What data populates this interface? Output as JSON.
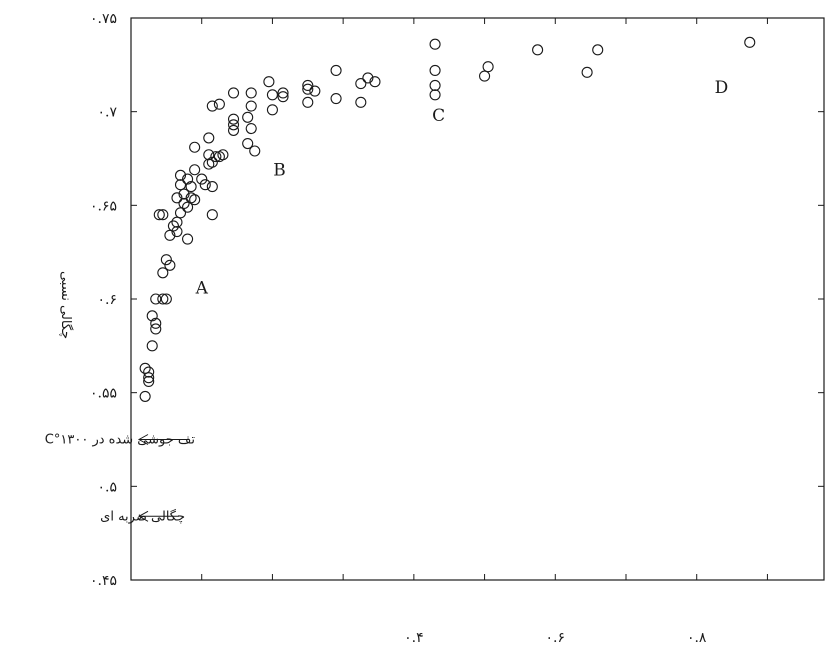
{
  "chart_data": {
    "type": "scatter",
    "title": "",
    "xlabel": "",
    "ylabel": "چگالی نسبی",
    "xlim": [
      0,
      0.98
    ],
    "ylim": [
      0.45,
      0.75
    ],
    "y_ticks": [
      {
        "value": 0.75,
        "label": "۰.۷۵"
      },
      {
        "value": 0.7,
        "label": "۰.۷"
      },
      {
        "value": 0.65,
        "label": "۰.۶۵"
      },
      {
        "value": 0.6,
        "label": "۰.۶"
      },
      {
        "value": 0.55,
        "label": "۰.۵۵"
      },
      {
        "value": 0.5,
        "label": "۰.۵"
      },
      {
        "value": 0.45,
        "label": "۰.۴۵"
      }
    ],
    "x_ticks": [
      {
        "value": 0.4,
        "label": "۰.۴"
      },
      {
        "value": 0.6,
        "label": "۰.۶"
      },
      {
        "value": 0.8,
        "label": "۰.۸"
      }
    ],
    "x_minor_ticks": [
      0.1,
      0.2,
      0.3,
      0.4,
      0.5,
      0.6,
      0.7,
      0.8,
      0.9
    ],
    "grid": false,
    "legend": "none",
    "series": [
      {
        "points": [
          [
            0.02,
            0.548
          ],
          [
            0.02,
            0.563
          ],
          [
            0.025,
            0.558
          ],
          [
            0.025,
            0.561
          ],
          [
            0.025,
            0.556
          ],
          [
            0.03,
            0.575
          ],
          [
            0.035,
            0.587
          ],
          [
            0.03,
            0.591
          ],
          [
            0.035,
            0.584
          ],
          [
            0.035,
            0.6
          ],
          [
            0.045,
            0.6
          ],
          [
            0.05,
            0.6
          ],
          [
            0.045,
            0.614
          ],
          [
            0.055,
            0.618
          ],
          [
            0.05,
            0.621
          ],
          [
            0.04,
            0.645
          ],
          [
            0.045,
            0.645
          ],
          [
            0.06,
            0.639
          ],
          [
            0.065,
            0.641
          ],
          [
            0.065,
            0.636
          ],
          [
            0.055,
            0.634
          ],
          [
            0.08,
            0.632
          ],
          [
            0.07,
            0.646
          ],
          [
            0.075,
            0.651
          ],
          [
            0.08,
            0.649
          ],
          [
            0.065,
            0.654
          ],
          [
            0.075,
            0.656
          ],
          [
            0.07,
            0.661
          ],
          [
            0.085,
            0.654
          ],
          [
            0.09,
            0.653
          ],
          [
            0.07,
            0.666
          ],
          [
            0.08,
            0.664
          ],
          [
            0.085,
            0.66
          ],
          [
            0.09,
            0.669
          ],
          [
            0.09,
            0.681
          ],
          [
            0.1,
            0.664
          ],
          [
            0.105,
            0.661
          ],
          [
            0.11,
            0.677
          ],
          [
            0.11,
            0.686
          ],
          [
            0.115,
            0.66
          ],
          [
            0.11,
            0.672
          ],
          [
            0.115,
            0.673
          ],
          [
            0.12,
            0.676
          ],
          [
            0.125,
            0.676
          ],
          [
            0.13,
            0.677
          ],
          [
            0.115,
            0.645
          ],
          [
            0.115,
            0.703
          ],
          [
            0.125,
            0.704
          ],
          [
            0.145,
            0.69
          ],
          [
            0.145,
            0.693
          ],
          [
            0.145,
            0.696
          ],
          [
            0.145,
            0.71
          ],
          [
            0.165,
            0.683
          ],
          [
            0.165,
            0.697
          ],
          [
            0.17,
            0.691
          ],
          [
            0.175,
            0.679
          ],
          [
            0.17,
            0.71
          ],
          [
            0.17,
            0.703
          ],
          [
            0.195,
            0.716
          ],
          [
            0.2,
            0.701
          ],
          [
            0.2,
            0.709
          ],
          [
            0.215,
            0.71
          ],
          [
            0.215,
            0.708
          ],
          [
            0.25,
            0.705
          ],
          [
            0.25,
            0.712
          ],
          [
            0.25,
            0.714
          ],
          [
            0.26,
            0.711
          ],
          [
            0.29,
            0.707
          ],
          [
            0.29,
            0.722
          ],
          [
            0.325,
            0.705
          ],
          [
            0.325,
            0.715
          ],
          [
            0.335,
            0.718
          ],
          [
            0.345,
            0.716
          ],
          [
            0.43,
            0.736
          ],
          [
            0.43,
            0.722
          ],
          [
            0.43,
            0.714
          ],
          [
            0.43,
            0.709
          ],
          [
            0.5,
            0.719
          ],
          [
            0.505,
            0.724
          ],
          [
            0.575,
            0.733
          ],
          [
            0.645,
            0.721
          ],
          [
            0.66,
            0.733
          ],
          [
            0.875,
            0.737
          ]
        ]
      }
    ],
    "region_labels": [
      {
        "text": "A",
        "x": 0.1,
        "y": 0.603
      },
      {
        "text": "B",
        "x": 0.21,
        "y": 0.666
      },
      {
        "text": "C",
        "x": 0.435,
        "y": 0.695
      },
      {
        "text": "D",
        "x": 0.835,
        "y": 0.71
      }
    ],
    "reference_lines": [
      {
        "value": 0.525,
        "label": "تف جوشی شده در ۱۳۰۰°C"
      },
      {
        "value": 0.484,
        "label": "چگالی ضربه ای"
      }
    ]
  }
}
